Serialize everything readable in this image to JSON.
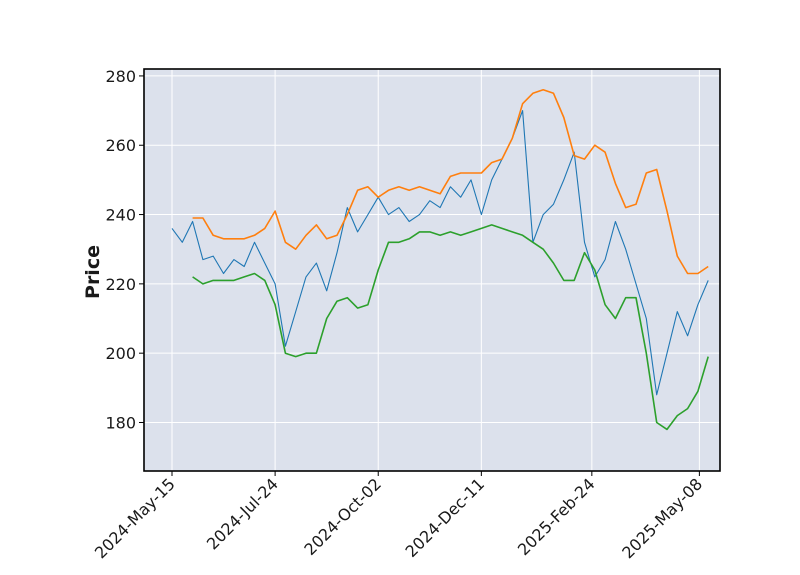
{
  "chart_data": {
    "type": "line",
    "title": "",
    "xlabel": "",
    "ylabel": "Price",
    "ylim": [
      166,
      282
    ],
    "xlim": [
      "2024-04-26",
      "2025-05-22"
    ],
    "y_ticks": [
      180,
      200,
      220,
      240,
      260,
      280
    ],
    "x_ticks": [
      "2024-May-15",
      "2024-Jul-24",
      "2024-Oct-02",
      "2024-Dec-11",
      "2025-Feb-24",
      "2025-May-08"
    ],
    "grid": true,
    "legend": "none",
    "colors": {
      "background": "#dce1ec",
      "grid": "#ffffff",
      "price": "#1f77b4",
      "upper": "#ff7f0e",
      "lower": "#2ca02c"
    },
    "series": [
      {
        "key": "price",
        "x": [
          "2024-05-15",
          "2024-05-22",
          "2024-05-29",
          "2024-06-05",
          "2024-06-12",
          "2024-06-19",
          "2024-06-26",
          "2024-07-03",
          "2024-07-10",
          "2024-07-17",
          "2024-07-24",
          "2024-07-31",
          "2024-08-07",
          "2024-08-14",
          "2024-08-21",
          "2024-08-28",
          "2024-09-04",
          "2024-09-11",
          "2024-09-18",
          "2024-09-25",
          "2024-10-02",
          "2024-10-09",
          "2024-10-16",
          "2024-10-23",
          "2024-10-30",
          "2024-11-06",
          "2024-11-13",
          "2024-11-20",
          "2024-11-27",
          "2024-12-04",
          "2024-12-11",
          "2024-12-18",
          "2024-12-25",
          "2025-01-01",
          "2025-01-08",
          "2025-01-15",
          "2025-01-22",
          "2025-01-29",
          "2025-02-05",
          "2025-02-12",
          "2025-02-19",
          "2025-02-26",
          "2025-03-05",
          "2025-03-12",
          "2025-03-19",
          "2025-03-26",
          "2025-04-02",
          "2025-04-09",
          "2025-04-16",
          "2025-04-23",
          "2025-04-30",
          "2025-05-07",
          "2025-05-14"
        ],
        "values": [
          236,
          232,
          238,
          227,
          228,
          223,
          227,
          225,
          232,
          226,
          220,
          202,
          212,
          222,
          226,
          218,
          229,
          242,
          235,
          240,
          245,
          240,
          242,
          238,
          240,
          244,
          242,
          248,
          245,
          250,
          240,
          250,
          256,
          262,
          270,
          232,
          240,
          243,
          250,
          258,
          232,
          222,
          227,
          238,
          230,
          220,
          210,
          188,
          200,
          212,
          205,
          214,
          221
        ]
      },
      {
        "key": "upper",
        "x": [
          "2024-05-29",
          "2024-06-05",
          "2024-06-12",
          "2024-06-19",
          "2024-06-26",
          "2024-07-03",
          "2024-07-10",
          "2024-07-17",
          "2024-07-24",
          "2024-07-31",
          "2024-08-07",
          "2024-08-14",
          "2024-08-21",
          "2024-08-28",
          "2024-09-04",
          "2024-09-11",
          "2024-09-18",
          "2024-09-25",
          "2024-10-02",
          "2024-10-09",
          "2024-10-16",
          "2024-10-23",
          "2024-10-30",
          "2024-11-06",
          "2024-11-13",
          "2024-11-20",
          "2024-11-27",
          "2024-12-04",
          "2024-12-11",
          "2024-12-18",
          "2024-12-25",
          "2025-01-01",
          "2025-01-08",
          "2025-01-15",
          "2025-01-22",
          "2025-01-29",
          "2025-02-05",
          "2025-02-12",
          "2025-02-19",
          "2025-02-26",
          "2025-03-05",
          "2025-03-12",
          "2025-03-19",
          "2025-03-26",
          "2025-04-02",
          "2025-04-09",
          "2025-04-16",
          "2025-04-23",
          "2025-04-30",
          "2025-05-07",
          "2025-05-14"
        ],
        "values": [
          239,
          239,
          234,
          233,
          233,
          233,
          234,
          236,
          241,
          232,
          230,
          234,
          237,
          233,
          234,
          240,
          247,
          248,
          245,
          247,
          248,
          247,
          248,
          247,
          246,
          251,
          252,
          252,
          252,
          255,
          256,
          262,
          272,
          275,
          276,
          275,
          268,
          257,
          256,
          260,
          258,
          249,
          242,
          243,
          252,
          253,
          241,
          228,
          223,
          223,
          225
        ]
      },
      {
        "key": "lower",
        "x": [
          "2024-05-29",
          "2024-06-05",
          "2024-06-12",
          "2024-06-19",
          "2024-06-26",
          "2024-07-03",
          "2024-07-10",
          "2024-07-17",
          "2024-07-24",
          "2024-07-31",
          "2024-08-07",
          "2024-08-14",
          "2024-08-21",
          "2024-08-28",
          "2024-09-04",
          "2024-09-11",
          "2024-09-18",
          "2024-09-25",
          "2024-10-02",
          "2024-10-09",
          "2024-10-16",
          "2024-10-23",
          "2024-10-30",
          "2024-11-06",
          "2024-11-13",
          "2024-11-20",
          "2024-11-27",
          "2024-12-04",
          "2024-12-11",
          "2024-12-18",
          "2024-12-25",
          "2025-01-01",
          "2025-01-08",
          "2025-01-15",
          "2025-01-22",
          "2025-01-29",
          "2025-02-05",
          "2025-02-12",
          "2025-02-19",
          "2025-02-26",
          "2025-03-05",
          "2025-03-12",
          "2025-03-19",
          "2025-03-26",
          "2025-04-02",
          "2025-04-09",
          "2025-04-16",
          "2025-04-23",
          "2025-04-30",
          "2025-05-07",
          "2025-05-14"
        ],
        "values": [
          222,
          220,
          221,
          221,
          221,
          222,
          223,
          221,
          214,
          200,
          199,
          200,
          200,
          210,
          215,
          216,
          213,
          214,
          224,
          232,
          232,
          233,
          235,
          235,
          234,
          235,
          234,
          235,
          236,
          237,
          236,
          235,
          234,
          232,
          230,
          226,
          221,
          221,
          229,
          224,
          214,
          210,
          216,
          216,
          200,
          180,
          178,
          182,
          184,
          189,
          199
        ]
      }
    ]
  }
}
